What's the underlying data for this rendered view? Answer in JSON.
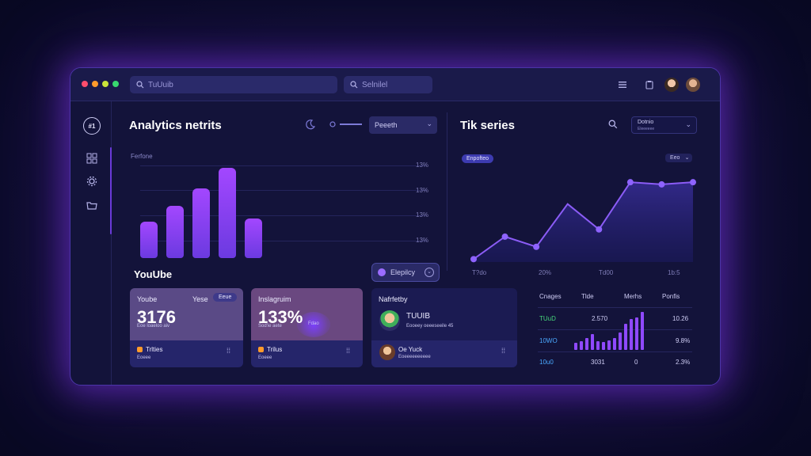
{
  "topbar": {
    "search_primary": "TuUuib",
    "search_secondary": "Selnilel"
  },
  "analytics": {
    "title": "Analytics netrits",
    "dropdown": "Peeeth",
    "axis_label": "Ferfone",
    "y_ticks": [
      "13%",
      "13%",
      "13%",
      "13%"
    ]
  },
  "youtube_section": {
    "title": "YouUbe",
    "toggle_label": "Elepilcy"
  },
  "series": {
    "title": "Tik series",
    "dropdown": "Dotnio",
    "dropdown_sub": "Eleeeeee",
    "badge": "Enpofteo",
    "right_filter": "Eeo",
    "x_ticks": [
      "T?do",
      "20%",
      "Td00",
      "1b:5"
    ]
  },
  "cards": [
    {
      "name": "Yoube",
      "tag_left": "Yese",
      "tag_pill": "Eeue",
      "value": "3176",
      "sub": "Eoe loaeloo aiv",
      "footer": "Trlties",
      "footer_sub": "Eoeee"
    },
    {
      "name": "Inslagruim",
      "value": "133%",
      "sub": "Sod'ie aete",
      "pill": "Fdao",
      "footer": "Trilus",
      "footer_sub": "Eoeee"
    }
  ],
  "activity": {
    "heading": "Nafrfetby",
    "item1_title": "TUUIB",
    "item1_sub": "Eooeey oeeeseeile 45",
    "item2_title": "Oe Yuck",
    "item2_sub": "Eoeeeeeeeeee"
  },
  "table": {
    "headers": [
      "Cnages",
      "Tlde",
      "Merhs",
      "Ponfis"
    ],
    "rows": [
      {
        "label": "TUuD",
        "c1": "2.570",
        "c2": "",
        "c3": "10.26"
      },
      {
        "label": "10WO",
        "c1": "",
        "c2": "",
        "c3": "9.8%"
      },
      {
        "label": "10u0",
        "c1": "3031",
        "c2": "0",
        "c3": "2.3%"
      }
    ]
  },
  "chart_data": [
    {
      "type": "bar",
      "categories": [
        "1",
        "2",
        "3",
        "4",
        "5",
        "6"
      ],
      "values": [
        46,
        66,
        88,
        114,
        0,
        50
      ],
      "ylim": [
        0,
        130
      ],
      "bar_color": "#9a45ff"
    },
    {
      "type": "area",
      "x": [
        0,
        1,
        2,
        3,
        4,
        5,
        6,
        7
      ],
      "values": [
        4,
        35,
        21,
        80,
        45,
        110,
        107,
        110
      ],
      "ylim": [
        0,
        120
      ],
      "line_color": "#8b5cf6"
    },
    {
      "type": "bar",
      "values": [
        8,
        10,
        14,
        18,
        10,
        9,
        11,
        14,
        20,
        30,
        36,
        38,
        44
      ],
      "bar_color": "#8f49ff"
    }
  ],
  "colors": {
    "accent": "#8b5cf6",
    "window_bg": "#13133a",
    "glow": "#8c3cff",
    "dot_red": "#ff4d6d",
    "dot_orange": "#ff9b2b",
    "dot_yellow": "#c9e33a",
    "dot_green": "#38d86f",
    "card1": "#5a4a86",
    "card2": "#6a4880"
  }
}
